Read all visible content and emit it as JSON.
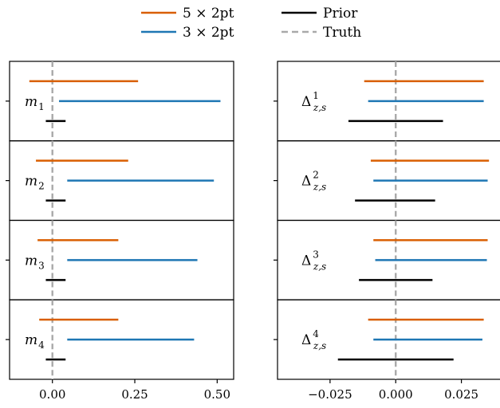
{
  "legend": {
    "items": [
      {
        "label": "5 × 2pt",
        "color": "#d95f02",
        "style": "solid"
      },
      {
        "label": "Prior",
        "color": "#000000",
        "style": "solid"
      },
      {
        "label": "3 × 2pt",
        "color": "#1f77b4",
        "style": "solid"
      },
      {
        "label": "Truth",
        "color": "#a9a9a9",
        "style": "dashed"
      }
    ]
  },
  "chart_data": [
    {
      "type": "interval",
      "panel": "left",
      "xlim": [
        -0.13,
        0.55
      ],
      "xticks": [
        0.0,
        0.25,
        0.5
      ],
      "xtick_labels": [
        "0.00",
        "0.25",
        "0.50"
      ],
      "truth": 0.0,
      "rows": [
        {
          "label": "m",
          "sub": "1",
          "intervals": [
            {
              "series": "5 × 2pt",
              "low": -0.07,
              "high": 0.26
            },
            {
              "series": "3 × 2pt",
              "low": 0.02,
              "high": 0.51
            },
            {
              "series": "Prior",
              "low": -0.02,
              "high": 0.04
            }
          ]
        },
        {
          "label": "m",
          "sub": "2",
          "intervals": [
            {
              "series": "5 × 2pt",
              "low": -0.05,
              "high": 0.23
            },
            {
              "series": "3 × 2pt",
              "low": 0.045,
              "high": 0.49
            },
            {
              "series": "Prior",
              "low": -0.02,
              "high": 0.04
            }
          ]
        },
        {
          "label": "m",
          "sub": "3",
          "intervals": [
            {
              "series": "5 × 2pt",
              "low": -0.045,
              "high": 0.2
            },
            {
              "series": "3 × 2pt",
              "low": 0.045,
              "high": 0.44
            },
            {
              "series": "Prior",
              "low": -0.02,
              "high": 0.04
            }
          ]
        },
        {
          "label": "m",
          "sub": "4",
          "intervals": [
            {
              "series": "5 × 2pt",
              "low": -0.04,
              "high": 0.2
            },
            {
              "series": "3 × 2pt",
              "low": 0.045,
              "high": 0.43
            },
            {
              "series": "Prior",
              "low": -0.02,
              "high": 0.04
            }
          ]
        }
      ]
    },
    {
      "type": "interval",
      "panel": "right",
      "xlim": [
        -0.045,
        0.04
      ],
      "xticks": [
        -0.025,
        0.0,
        0.025
      ],
      "xtick_labels": [
        "−0.025",
        "0.000",
        "0.025"
      ],
      "truth": 0.0,
      "rows": [
        {
          "label": "Δ",
          "sub": "z,s",
          "sup": "1",
          "intervals": [
            {
              "series": "5 × 2pt",
              "low": -0.012,
              "high": 0.0335
            },
            {
              "series": "3 × 2pt",
              "low": -0.0105,
              "high": 0.0335
            },
            {
              "series": "Prior",
              "low": -0.018,
              "high": 0.018
            }
          ]
        },
        {
          "label": "Δ",
          "sub": "z,s",
          "sup": "2",
          "intervals": [
            {
              "series": "5 × 2pt",
              "low": -0.0095,
              "high": 0.0355
            },
            {
              "series": "3 × 2pt",
              "low": -0.0085,
              "high": 0.035
            },
            {
              "series": "Prior",
              "low": -0.0155,
              "high": 0.015
            }
          ]
        },
        {
          "label": "Δ",
          "sub": "z,s",
          "sup": "3",
          "intervals": [
            {
              "series": "5 × 2pt",
              "low": -0.0085,
              "high": 0.035
            },
            {
              "series": "3 × 2pt",
              "low": -0.0078,
              "high": 0.0347
            },
            {
              "series": "Prior",
              "low": -0.014,
              "high": 0.014
            }
          ]
        },
        {
          "label": "Δ",
          "sub": "z,s",
          "sup": "4",
          "intervals": [
            {
              "series": "5 × 2pt",
              "low": -0.0105,
              "high": 0.0335
            },
            {
              "series": "3 × 2pt",
              "low": -0.0085,
              "high": 0.033
            },
            {
              "series": "Prior",
              "low": -0.022,
              "high": 0.022
            }
          ]
        }
      ]
    }
  ]
}
